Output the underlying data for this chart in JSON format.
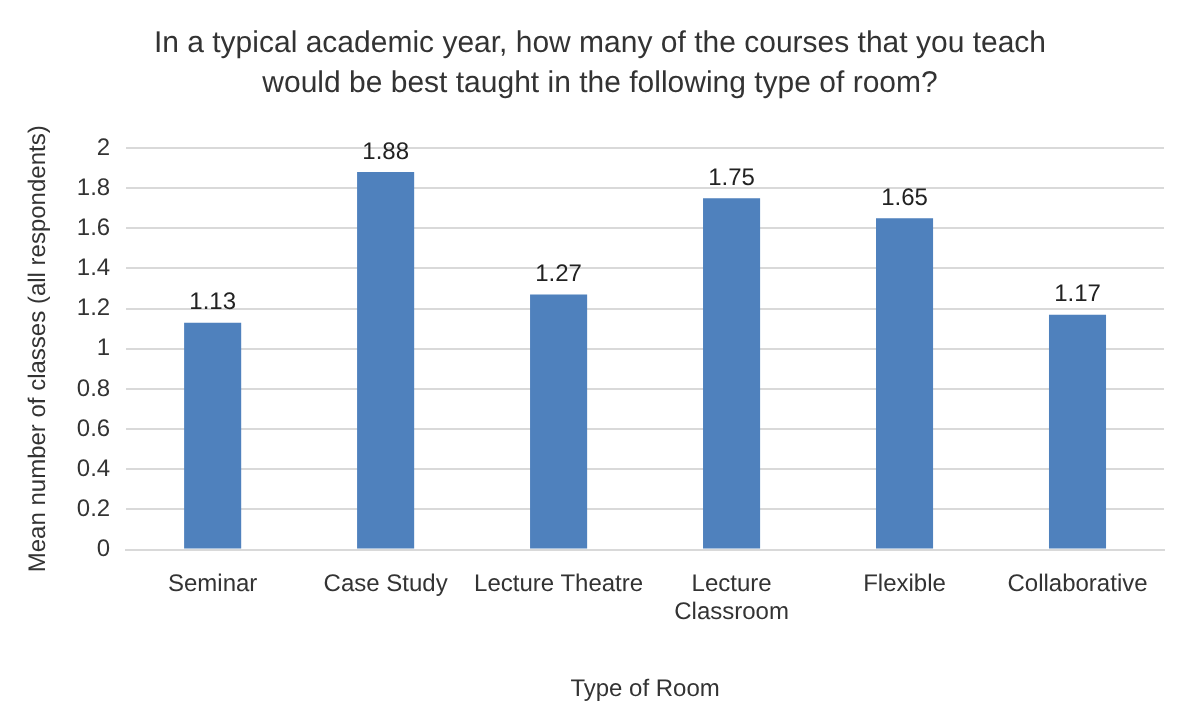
{
  "chart_data": {
    "type": "bar",
    "title": "In a typical academic year, how many of the courses that you teach would be best taught in the following type of room?",
    "xlabel": "Type of Room",
    "ylabel": "Mean number of classes (all respondents)",
    "categories": [
      "Seminar",
      "Case Study",
      "Lecture Theatre",
      "Lecture Classroom",
      "Flexible",
      "Collaborative"
    ],
    "values": [
      1.13,
      1.88,
      1.27,
      1.75,
      1.65,
      1.17
    ],
    "color": "#4f81bd",
    "ylim": [
      0,
      2
    ],
    "yticks": [
      0,
      0.2,
      0.4,
      0.6,
      0.8,
      1,
      1.2,
      1.4,
      1.6,
      1.8,
      2
    ],
    "grid": "y",
    "data_labels": true,
    "legend": false
  }
}
